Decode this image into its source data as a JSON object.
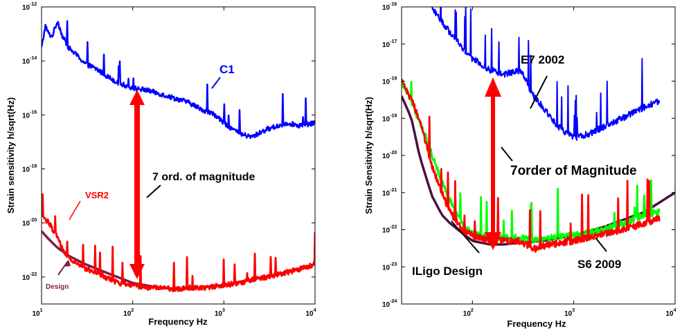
{
  "chart_data": [
    {
      "type": "line",
      "xscale": "log",
      "yscale": "log",
      "xlabel": "Frequency Hz",
      "ylabel": "Strain sensitivity h/sqrt(Hz)",
      "xlim": [
        10,
        10000
      ],
      "ylim": [
        1e-23,
        1e-12
      ],
      "x_ticks": [
        "10^1",
        "10^2",
        "10^3",
        "10^4"
      ],
      "y_ticks": [
        "10^-22",
        "10^-20",
        "10^-18",
        "10^-16",
        "10^-14",
        "10^-12"
      ],
      "series": [
        {
          "name": "C1",
          "color": "#0000ff",
          "x": [
            10,
            11,
            12,
            13,
            15,
            17,
            20,
            25,
            30,
            40,
            50,
            70,
            100,
            150,
            200,
            300,
            400,
            600,
            800,
            1000,
            1500,
            2000,
            3000,
            5000,
            7000,
            10000
          ],
          "y": [
            3e-14,
            2e-13,
            1e-13,
            8e-14,
            3e-13,
            8e-14,
            3e-14,
            1.5e-14,
            8e-15,
            5e-15,
            3e-15,
            1.5e-15,
            1e-15,
            8e-16,
            6e-16,
            4e-16,
            3e-16,
            1.5e-16,
            1e-16,
            5e-17,
            2e-17,
            1.5e-17,
            3e-17,
            5e-17,
            4e-17,
            5e-17
          ]
        },
        {
          "name": "VSR2",
          "color": "#ff0000",
          "x": [
            10,
            12,
            15,
            17,
            20,
            25,
            30,
            40,
            50,
            70,
            100,
            150,
            200,
            300,
            400,
            600,
            1000,
            1500,
            2000,
            3000,
            5000,
            7000,
            10000
          ],
          "y": [
            2e-20,
            1e-20,
            3e-21,
            1e-21,
            5e-22,
            3e-22,
            2e-22,
            1.5e-22,
            1e-22,
            6e-23,
            5e-23,
            4e-23,
            4e-23,
            3.5e-23,
            4e-23,
            4e-23,
            5e-23,
            6e-23,
            8e-23,
            1e-22,
            1.5e-22,
            2e-22,
            3e-22
          ]
        },
        {
          "name": "Design",
          "color": "#7b1c4e",
          "x": [
            10,
            12,
            15,
            20,
            30,
            50,
            100,
            200,
            330,
            500,
            1000,
            2000,
            5000,
            10000
          ],
          "y": [
            5e-21,
            2.5e-21,
            1.2e-21,
            6e-22,
            3e-22,
            1.5e-22,
            6e-23,
            4e-23,
            3.5e-23,
            4e-23,
            5e-23,
            8e-23,
            1.5e-22,
            3e-22
          ]
        }
      ],
      "annotations": [
        {
          "text": "C1"
        },
        {
          "text": "VSR2"
        },
        {
          "text": "Design"
        },
        {
          "text": "7 ord. of magnitude"
        }
      ]
    },
    {
      "type": "line",
      "xscale": "log",
      "yscale": "log",
      "xlabel": "Frequency Hz",
      "ylabel": "Strain Sensitivity h/sqrt(Hz)",
      "xlim": [
        20,
        10000
      ],
      "ylim": [
        1e-24,
        1e-16
      ],
      "x_ticks": [
        "10^2",
        "10^3",
        "10^4"
      ],
      "y_ticks": [
        "10^-24",
        "10^-23",
        "10^-22",
        "10^-21",
        "10^-20",
        "10^-19",
        "10^-18",
        "10^-17",
        "10^-16"
      ],
      "series": [
        {
          "name": "E7 2002",
          "color": "#0000ff",
          "x": [
            40,
            50,
            60,
            80,
            100,
            150,
            200,
            300,
            400,
            500,
            700,
            1000,
            1500,
            2000,
            3000,
            5000,
            7000
          ],
          "y": [
            1e-16,
            4e-17,
            2e-17,
            8e-18,
            4e-18,
            2e-18,
            1.5e-18,
            2e-18,
            4e-19,
            2e-19,
            6e-20,
            3e-20,
            4e-20,
            6e-20,
            1e-19,
            2e-19,
            3e-19
          ]
        },
        {
          "name": "S6 2009",
          "color": "#ff0000",
          "x": [
            20,
            25,
            30,
            35,
            40,
            50,
            60,
            80,
            100,
            150,
            200,
            300,
            400,
            600,
            1000,
            2000,
            3000,
            5000,
            7000
          ],
          "y": [
            1e-18,
            3e-19,
            1e-19,
            2e-20,
            5e-21,
            1e-21,
            3e-22,
            1e-22,
            7e-23,
            5e-23,
            5e-23,
            5e-23,
            3e-23,
            4e-23,
            5e-23,
            8e-23,
            1e-22,
            1.5e-22,
            2e-22
          ]
        },
        {
          "name": "",
          "color": "#00ff00",
          "x": [
            20,
            25,
            30,
            35,
            40,
            50,
            60,
            80,
            100,
            150,
            200,
            300,
            400,
            600,
            1000,
            2000,
            3000,
            5000,
            7000
          ],
          "y": [
            1e-18,
            3e-19,
            8e-20,
            3e-20,
            1e-20,
            2e-21,
            6e-22,
            1.5e-22,
            8e-23,
            6e-23,
            6e-23,
            6e-23,
            5e-23,
            6e-23,
            7e-23,
            1e-22,
            1.5e-22,
            2.5e-22,
            3e-22
          ]
        },
        {
          "name": "ILigo Design",
          "color": "#4b1042",
          "x": [
            20,
            25,
            30,
            35,
            40,
            50,
            60,
            80,
            100,
            150,
            200,
            300,
            500,
            1000,
            2000,
            3000,
            5000,
            10000
          ],
          "y": [
            4e-19,
            1e-19,
            1e-20,
            2.5e-21,
            8e-22,
            2.5e-22,
            1.5e-22,
            8e-23,
            5e-23,
            4e-23,
            4e-23,
            4.5e-23,
            5e-23,
            7e-23,
            1.2e-22,
            1.8e-22,
            3e-22,
            1e-21
          ]
        }
      ],
      "annotations": [
        {
          "text": "E7 2002"
        },
        {
          "text": "7order of Magnitude"
        },
        {
          "text": "ILigo Design"
        },
        {
          "text": "S6 2009"
        }
      ]
    }
  ]
}
